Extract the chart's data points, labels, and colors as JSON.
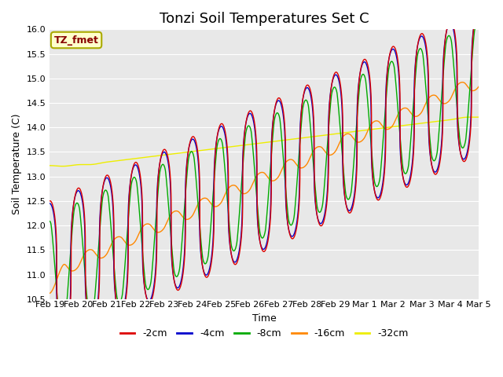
{
  "title": "Tonzi Soil Temperatures Set C",
  "xlabel": "Time",
  "ylabel": "Soil Temperature (C)",
  "ylim": [
    10.5,
    16.0
  ],
  "yticks": [
    10.5,
    11.0,
    11.5,
    12.0,
    12.5,
    13.0,
    13.5,
    14.0,
    14.5,
    15.0,
    15.5,
    16.0
  ],
  "xtick_labels": [
    "Feb 19",
    "Feb 20",
    "Feb 21",
    "Feb 22",
    "Feb 23",
    "Feb 24",
    "Feb 25",
    "Feb 26",
    "Feb 27",
    "Feb 28",
    "Feb 29",
    "Mar 1",
    "Mar 2",
    "Mar 3",
    "Mar 4",
    "Mar 5"
  ],
  "colors": {
    "-2cm": "#dd0000",
    "-4cm": "#0000cc",
    "-8cm": "#00aa00",
    "-16cm": "#ff8800",
    "-32cm": "#eeee00"
  },
  "legend_labels": [
    "-2cm",
    "-4cm",
    "-8cm",
    "-16cm",
    "-32cm"
  ],
  "annotation_text": "TZ_fmet",
  "annotation_bg": "#ffffcc",
  "annotation_border": "#aaaa00",
  "plot_bg": "#e8e8e8",
  "fig_bg": "#ffffff",
  "title_fontsize": 13,
  "axis_fontsize": 9,
  "legend_fontsize": 9,
  "tick_fontsize": 8
}
